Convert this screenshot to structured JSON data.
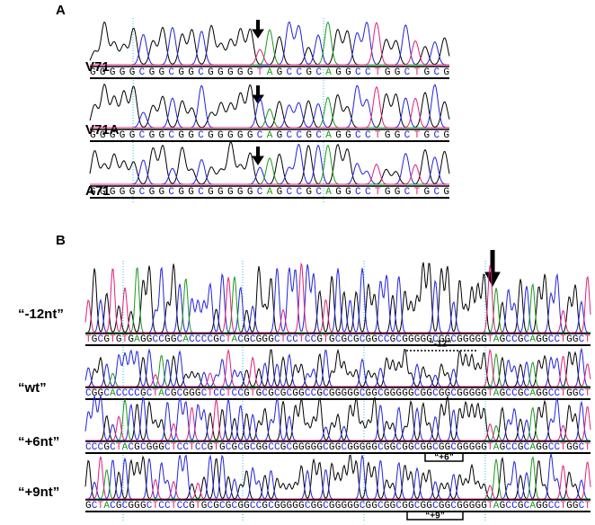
{
  "panels": [
    {
      "label": "A",
      "rows": [
        {
          "label": "V71",
          "sequence": "GGGGGCGGCGGCGGGGGTAGCCGCAGGCCTGGCTGCG"
        },
        {
          "label": "V71A",
          "sequence": "GGGGGCGGCGGCGGGGGCAGCCGCAGGCCTGGCTGCG"
        },
        {
          "label": "A71",
          "sequence": "GGGGGCGGCGGCGGGGGCAGCCGCAGGCCTGGCTGCG"
        }
      ]
    },
    {
      "label": "B",
      "rows": [
        {
          "label": "“-12nt”",
          "sequence": "TGCGTGTGAGGCCGGCACCCCGCTACGCGGGCTCCTCCGTGCGCGCGGCCGCGGGGGCGGCGGGGGTAGCCGCAGGCCTGGCT"
        },
        {
          "label": "“wt”",
          "sequence": "CGGCACCCCGCTACGCGGGCTCCTCCGTGCGCGCGGCCGCGGGGGCGGCGGGGGCGGCGGCGGGGGTAGCCGCAGGCCTGGCT"
        },
        {
          "label": "“+6nt”",
          "sequence": "CCCGCTACGCGGGCTCCTCCGTGCGCGCGGCCGCGGGGGCGGCGGGGGCGGCGGCGGCGGCGGGGGTAGCCGCAGGCCTGGCT"
        },
        {
          "label": "“+9nt”",
          "sequence": "GCTACGCGGGCTCCTCCGTGCGCGCGGCCGCGGGGGCGGCGGGGGCGGCGGCGGCGGCGGCGGGGGTAGCCGCAGGCCTGGCT"
        }
      ],
      "annotations": [
        "“-12”",
        "“+6”",
        "“+9”"
      ]
    }
  ]
}
